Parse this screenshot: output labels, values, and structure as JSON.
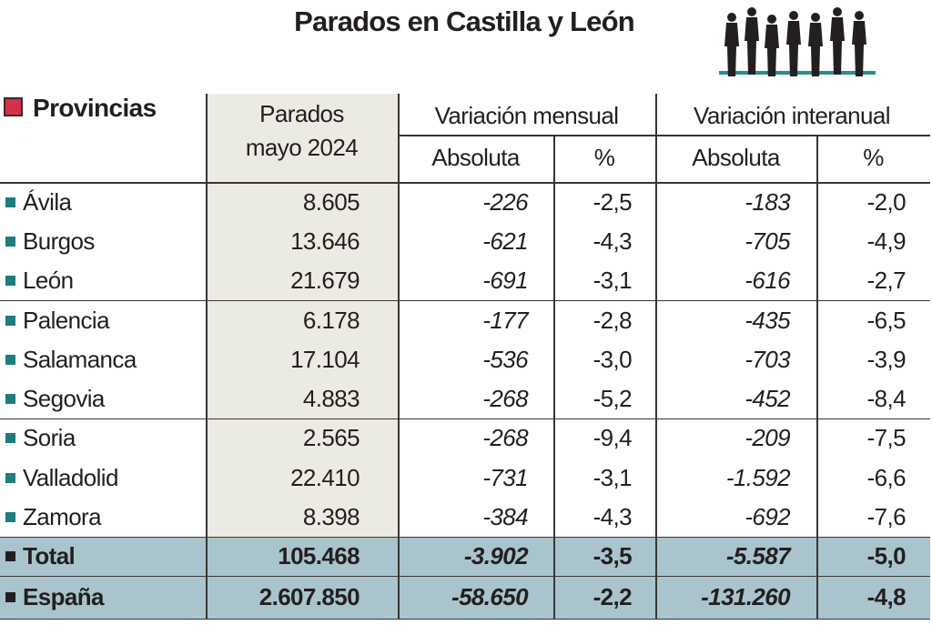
{
  "title": "Parados en Castilla y León",
  "colors": {
    "bullet": "#1e7c7c",
    "header_square": "#d6304a",
    "total_bg": "#a9c4cc",
    "parados_bg": "#ecebe3"
  },
  "icons": {
    "header": "people-silhouettes-icon"
  },
  "header": {
    "provincias": "Provincias",
    "parados_line1": "Parados",
    "parados_line2": "mayo 2024",
    "var_mensual": "Variación mensual",
    "var_interanual": "Variación interanual",
    "absoluta": "Absoluta",
    "pct": "%"
  },
  "chart_data": {
    "type": "table",
    "title": "Parados en Castilla y León",
    "columns": [
      "Provincias",
      "Parados mayo 2024",
      "Variación mensual Absoluta",
      "Variación mensual %",
      "Variación interanual Absoluta",
      "Variación interanual %"
    ],
    "rows": [
      [
        "Ávila",
        "8.605",
        "-226",
        "-2,5",
        "-183",
        "-2,0"
      ],
      [
        "Burgos",
        "13.646",
        "-621",
        "-4,3",
        "-705",
        "-4,9"
      ],
      [
        "León",
        "21.679",
        "-691",
        "-3,1",
        "-616",
        "-2,7"
      ],
      [
        "Palencia",
        "6.178",
        "-177",
        "-2,8",
        "-435",
        "-6,5"
      ],
      [
        "Salamanca",
        "17.104",
        "-536",
        "-3,0",
        "-703",
        "-3,9"
      ],
      [
        "Segovia",
        "4.883",
        "-268",
        "-5,2",
        "-452",
        "-8,4"
      ],
      [
        "Soria",
        "2.565",
        "-268",
        "-9,4",
        "-209",
        "-7,5"
      ],
      [
        "Valladolid",
        "22.410",
        "-731",
        "-3,1",
        "-1.592",
        "-6,6"
      ],
      [
        "Zamora",
        "8.398",
        "-384",
        "-4,3",
        "-692",
        "-7,6"
      ]
    ],
    "totals": [
      [
        "Total",
        "105.468",
        "-3.902",
        "-3,5",
        "-5.587",
        "-5,0"
      ],
      [
        "España",
        "2.607.850",
        "-58.650",
        "-2,2",
        "-131.260",
        "-4,8"
      ]
    ]
  }
}
